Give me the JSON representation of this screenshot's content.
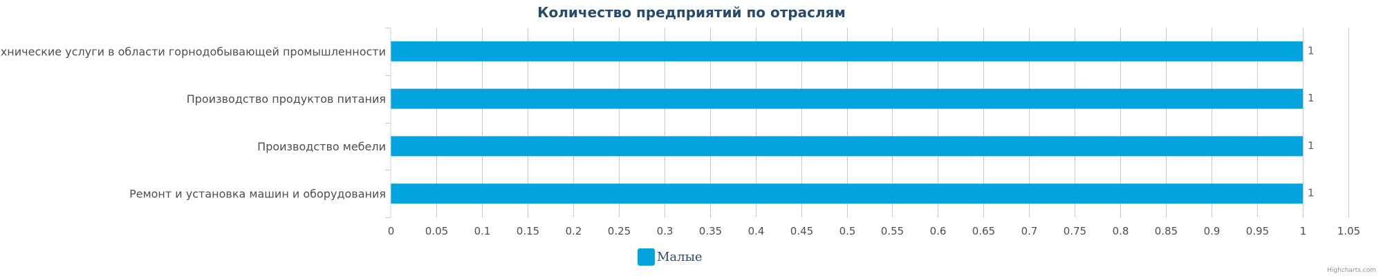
{
  "chart_data": {
    "type": "bar",
    "orientation": "horizontal",
    "title": "Количество предприятий по отраслям",
    "categories": [
      "Технические услуги в области горнодобывающей промышленности",
      "Производство продуктов питания",
      "Производство мебели",
      "Ремонт и установка машин и оборудования"
    ],
    "series": [
      {
        "name": "Малые",
        "color": "#03a4de",
        "values": [
          1,
          1,
          1,
          1
        ]
      }
    ],
    "data_labels": [
      "1",
      "1",
      "1",
      "1"
    ],
    "xlim": [
      0,
      1.05
    ],
    "xticks": [
      0,
      0.05,
      0.1,
      0.15,
      0.2,
      0.25,
      0.3,
      0.35,
      0.4,
      0.45,
      0.5,
      0.55,
      0.6,
      0.65,
      0.7,
      0.75,
      0.8,
      0.85,
      0.9,
      0.95,
      1,
      1.05
    ],
    "xtick_labels": [
      "0",
      "0.05",
      "0.1",
      "0.15",
      "0.2",
      "0.25",
      "0.3",
      "0.35",
      "0.4",
      "0.45",
      "0.5",
      "0.55",
      "0.6",
      "0.65",
      "0.7",
      "0.75",
      "0.8",
      "0.85",
      "0.9",
      "0.95",
      "1",
      "1.05"
    ],
    "xlabel": "",
    "ylabel": "",
    "grid": true,
    "legend_position": "bottom-center"
  },
  "credits": "Highcharts.com",
  "colors": {
    "title": "#274b6d",
    "bar": "#03a4de",
    "grid": "#c8c8c8",
    "label": "#4d4d4d"
  }
}
